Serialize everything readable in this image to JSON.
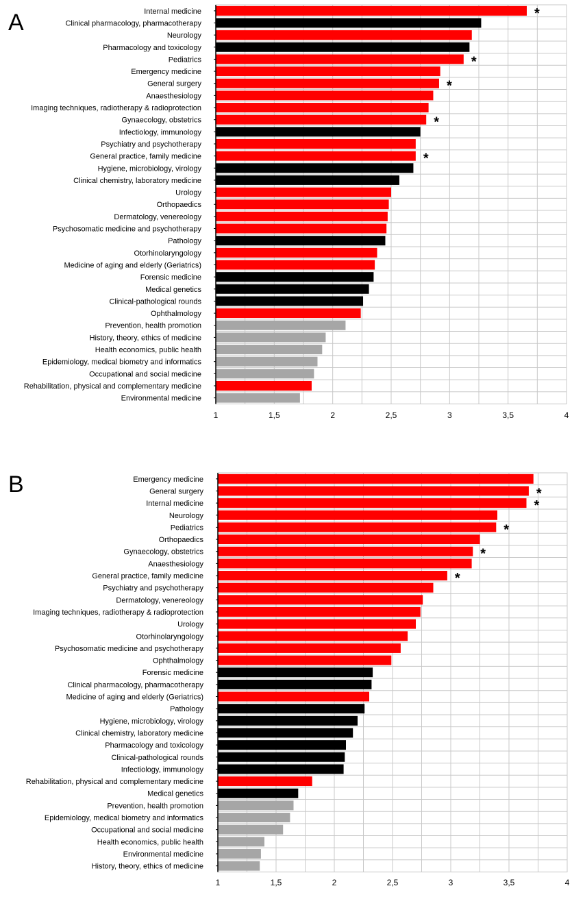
{
  "colors": {
    "clinical": "#ff0000",
    "nonclinical": "#000000",
    "public_health": "#a6a6a6",
    "grid": "#c8c8c8"
  },
  "chart_data": [
    {
      "type": "bar",
      "orientation": "horizontal",
      "panel": "A",
      "xlim": [
        1,
        4
      ],
      "x_ticks": [
        "1",
        "1,5",
        "2",
        "2,5",
        "3",
        "3,5",
        "4"
      ],
      "grid": true,
      "categories": [
        "Internal medicine",
        "Clinical pharmacology, pharmacotherapy",
        "Neurology",
        "Pharmacology and toxicology",
        "Pediatrics",
        "Emergency medicine",
        "General surgery",
        "Anaesthesiology",
        "Imaging techniques, radiotherapy & radioprotection",
        "Gynaecology, obstetrics",
        "Infectiology, immunology",
        "Psychiatry and psychotherapy",
        "General practice, family medicine",
        "Hygiene, microbiology, virology",
        "Clinical chemistry, laboratory medicine",
        "Urology",
        "Orthopaedics",
        "Dermatology, venereology",
        "Psychosomatic medicine and psychotherapy",
        "Pathology",
        "Otorhinolaryngology",
        "Medicine of aging and elderly (Geriatrics)",
        "Forensic medicine",
        "Medical genetics",
        "Clinical-pathological rounds",
        "Ophthalmology",
        "Prevention, health promotion",
        "History, theory, ethics of medicine",
        "Health economics, public health",
        "Epidemiology, medical biometry and informatics",
        "Occupational and social medicine",
        "Rehabilitation, physical and complementary medicine",
        "Environmental medicine"
      ],
      "values": [
        3.66,
        3.27,
        3.19,
        3.17,
        3.12,
        2.92,
        2.91,
        2.86,
        2.82,
        2.8,
        2.75,
        2.71,
        2.71,
        2.69,
        2.57,
        2.5,
        2.48,
        2.47,
        2.46,
        2.45,
        2.38,
        2.36,
        2.35,
        2.31,
        2.26,
        2.24,
        2.11,
        1.94,
        1.91,
        1.87,
        1.84,
        1.82,
        1.72
      ],
      "groups": [
        "clinical",
        "nonclinical",
        "clinical",
        "nonclinical",
        "clinical",
        "clinical",
        "clinical",
        "clinical",
        "clinical",
        "clinical",
        "nonclinical",
        "clinical",
        "clinical",
        "nonclinical",
        "nonclinical",
        "clinical",
        "clinical",
        "clinical",
        "clinical",
        "nonclinical",
        "clinical",
        "clinical",
        "nonclinical",
        "nonclinical",
        "nonclinical",
        "clinical",
        "public_health",
        "public_health",
        "public_health",
        "public_health",
        "public_health",
        "clinical",
        "public_health"
      ],
      "marked": [
        "Internal medicine",
        "Pediatrics",
        "General surgery",
        "Gynaecology, obstetrics",
        "General practice, family medicine"
      ],
      "marker": "*"
    },
    {
      "type": "bar",
      "orientation": "horizontal",
      "panel": "B",
      "xlim": [
        1,
        4
      ],
      "x_ticks": [
        "1",
        "1,5",
        "2",
        "2,5",
        "3",
        "3,5",
        "4"
      ],
      "grid": true,
      "categories": [
        "Emergency medicine",
        "General surgery",
        "Internal medicine",
        "Neurology",
        "Pediatrics",
        "Orthopaedics",
        "Gynaecology, obstetrics",
        "Anaesthesiology",
        "General practice, family medicine",
        "Psychiatry and psychotherapy",
        "Dermatology, venereology",
        "Imaging techniques, radiotherapy & radioprotection",
        "Urology",
        "Otorhinolaryngology",
        "Psychosomatic medicine and psychotherapy",
        "Ophthalmology",
        "Forensic medicine",
        "Clinical pharmacology, pharmacotherapy",
        "Medicine of aging and elderly (Geriatrics)",
        "Pathology",
        "Hygiene, microbiology, virology",
        "Clinical chemistry, laboratory medicine",
        "Pharmacology and toxicology",
        "Clinical-pathological rounds",
        "Infectiology, immunology",
        "Rehabilitation, physical and complementary medicine",
        "Medical genetics",
        "Prevention, health promotion",
        "Epidemiology, medical biometry and informatics",
        "Occupational and social medicine",
        "Health economics, public health",
        "Environmental medicine",
        "History, theory, ethics of medicine"
      ],
      "values": [
        3.71,
        3.67,
        3.65,
        3.4,
        3.39,
        3.25,
        3.19,
        3.18,
        2.97,
        2.85,
        2.76,
        2.74,
        2.7,
        2.63,
        2.57,
        2.49,
        2.33,
        2.32,
        2.3,
        2.26,
        2.2,
        2.16,
        2.1,
        2.09,
        2.08,
        1.81,
        1.69,
        1.65,
        1.62,
        1.56,
        1.4,
        1.37,
        1.36
      ],
      "groups": [
        "clinical",
        "clinical",
        "clinical",
        "clinical",
        "clinical",
        "clinical",
        "clinical",
        "clinical",
        "clinical",
        "clinical",
        "clinical",
        "clinical",
        "clinical",
        "clinical",
        "clinical",
        "clinical",
        "nonclinical",
        "nonclinical",
        "clinical",
        "nonclinical",
        "nonclinical",
        "nonclinical",
        "nonclinical",
        "nonclinical",
        "nonclinical",
        "clinical",
        "nonclinical",
        "public_health",
        "public_health",
        "public_health",
        "public_health",
        "public_health",
        "public_health"
      ],
      "marked": [
        "General surgery",
        "Internal medicine",
        "Pediatrics",
        "Gynaecology, obstetrics",
        "General practice, family medicine"
      ],
      "marker": "*"
    }
  ]
}
